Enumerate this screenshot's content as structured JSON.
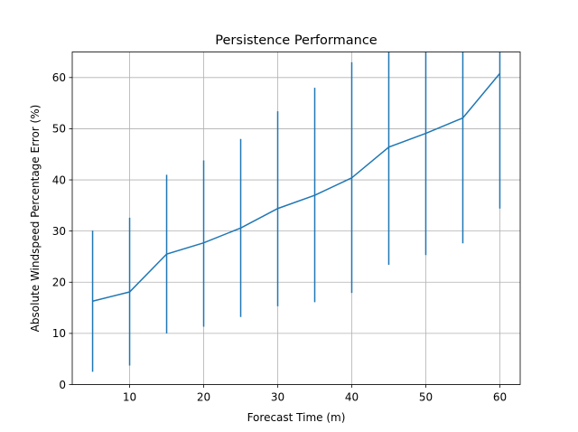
{
  "chart_data": {
    "type": "line",
    "title": "Persistence Performance",
    "xlabel": "Forecast Time (m)",
    "ylabel": "Absolute Windspeed Percentage Error (%)",
    "xlim": [
      2.25,
      62.75
    ],
    "ylim": [
      0,
      65
    ],
    "xticks": [
      10,
      20,
      30,
      40,
      50,
      60
    ],
    "yticks": [
      0,
      10,
      20,
      30,
      40,
      50,
      60
    ],
    "grid": true,
    "line_color": "#1f77b4",
    "series": [
      {
        "x": [
          5,
          10,
          15,
          20,
          25,
          30,
          35,
          40,
          45,
          50,
          55,
          60
        ],
        "y": [
          16.3,
          18.1,
          25.5,
          27.7,
          30.6,
          34.4,
          37.0,
          40.4,
          46.4,
          49.1,
          52.1,
          60.8
        ],
        "err_low": [
          2.5,
          3.7,
          10.0,
          11.3,
          13.2,
          15.3,
          16.1,
          17.9,
          23.4,
          25.3,
          27.6,
          34.4
        ],
        "err_high": [
          30.1,
          32.6,
          41.0,
          43.8,
          48.0,
          53.4,
          58.0,
          63.0,
          65,
          65,
          65,
          65
        ]
      }
    ]
  }
}
